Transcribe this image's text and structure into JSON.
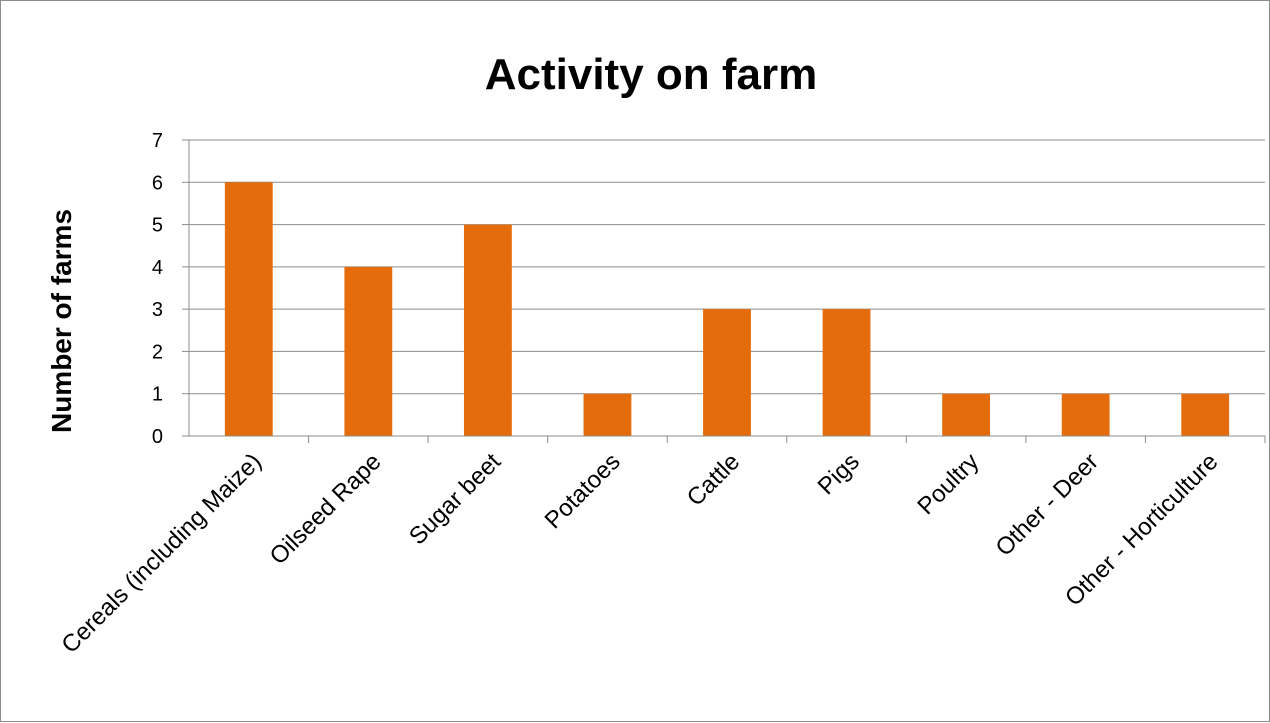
{
  "chart_data": {
    "type": "bar",
    "title": "Activity on farm",
    "xlabel": "",
    "ylabel": "Number of farms",
    "categories": [
      "Cereals (including Maize)",
      "Oilseed Rape",
      "Sugar beet",
      "Potatoes",
      "Cattle",
      "Pigs",
      "Poultry",
      "Other - Deer",
      "Other - Horticulture"
    ],
    "values": [
      6,
      4,
      5,
      1,
      3,
      3,
      1,
      1,
      1
    ],
    "ylim": [
      0,
      7
    ],
    "yticks": [
      "0",
      "1",
      "2",
      "3",
      "4",
      "5",
      "6",
      "7"
    ],
    "grid": true,
    "legend": "none",
    "colors": {
      "bar": "#E46C0A",
      "grid": "#8c8c8c",
      "axis": "#8c8c8c"
    }
  }
}
